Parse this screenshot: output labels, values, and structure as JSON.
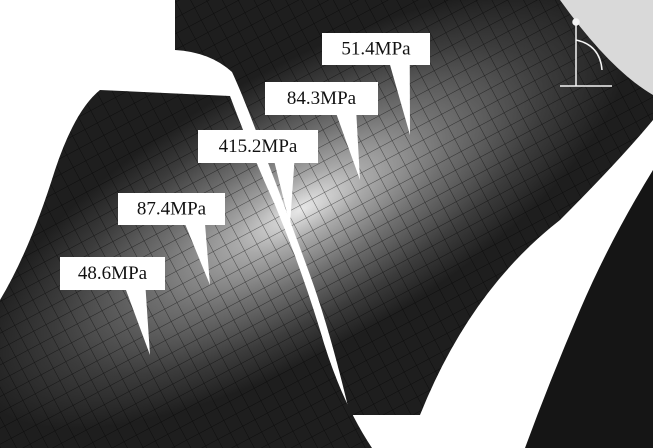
{
  "callouts": [
    {
      "label": "51.4MPa"
    },
    {
      "label": "84.3MPa"
    },
    {
      "label": "415.2MPa"
    },
    {
      "label": "87.4MPa"
    },
    {
      "label": "48.6MPa"
    }
  ]
}
